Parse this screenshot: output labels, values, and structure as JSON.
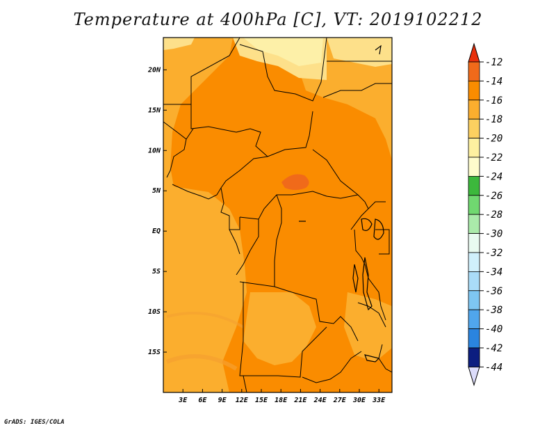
{
  "chart_data": {
    "type": "heatmap",
    "title": "Temperature at 400hPa [C], VT: 2019102212",
    "xlabel": "",
    "ylabel": "",
    "x_range": [
      0,
      35
    ],
    "y_range": [
      -20,
      24
    ],
    "x_ticks": [
      3,
      6,
      9,
      12,
      15,
      18,
      21,
      24,
      27,
      30,
      33
    ],
    "x_tick_labels": [
      "3E",
      "6E",
      "9E",
      "12E",
      "15E",
      "18E",
      "21E",
      "24E",
      "27E",
      "30E",
      "33E"
    ],
    "y_ticks": [
      20,
      15,
      10,
      5,
      0,
      -5,
      -10,
      -15
    ],
    "y_tick_labels": [
      "20N",
      "15N",
      "10N",
      "5N",
      "EQ",
      "5S",
      "10S",
      "15S"
    ],
    "colorbar": {
      "levels": [
        -12,
        -14,
        -16,
        -18,
        -20,
        -22,
        -24,
        -26,
        -28,
        -30,
        -32,
        -34,
        -36,
        -38,
        -40,
        -42,
        -44
      ],
      "level_labels": [
        "-12",
        "-14",
        "-16",
        "-18",
        "-20",
        "-22",
        "-24",
        "-26",
        "-28",
        "-30",
        "-32",
        "-34",
        "-36",
        "-38",
        "-40",
        "-42",
        "-44"
      ],
      "colors": [
        "#f06a1a",
        "#fa8c00",
        "#fbae2e",
        "#fcd060",
        "#fdf0a0",
        "#fefccc",
        "#3cb83c",
        "#70d870",
        "#aaeaaa",
        "#e8faf0",
        "#d0f0fc",
        "#aadcf8",
        "#7ec6f2",
        "#50a6ec",
        "#2a84e0",
        "#1456c8",
        "#0c1e80"
      ],
      "top_arrow_color": "#e8300c",
      "bottom_arrow_color": "#dcdcfa"
    },
    "fields": [
      {
        "range": "-16 to -14",
        "region": "west and south coast, Atlantic",
        "color": "#fbae2e"
      },
      {
        "range": "-14 to -12",
        "region": "central interior",
        "color": "#fa8c00"
      },
      {
        "range": "-18 to -20",
        "region": "Sahara north of 20N",
        "color": "#fde08a"
      },
      {
        "range": "-12 to -10",
        "region": "patch near 21E 7N",
        "color": "#f06a1a"
      }
    ]
  },
  "credit": "GrADS: IGES/COLA"
}
